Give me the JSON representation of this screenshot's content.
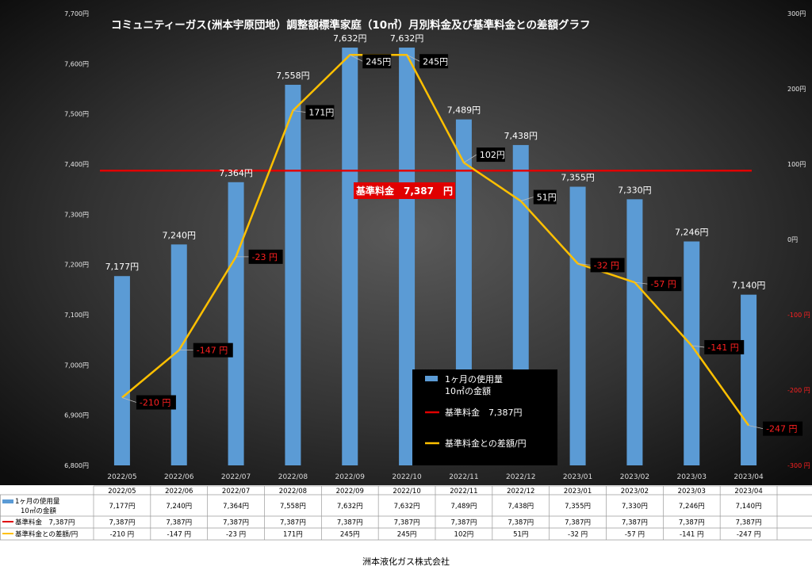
{
  "chart_data": {
    "type": "bar+line",
    "title": "コミュニティーガス(洲本宇原団地）調整額標準家庭（10㎥）月別料金及び基準料金との差額グラフ",
    "categories": [
      "2022/05",
      "2022/06",
      "2022/07",
      "2022/08",
      "2022/09",
      "2022/10",
      "2022/11",
      "2022/12",
      "2023/01",
      "2023/02",
      "2023/03",
      "2023/04"
    ],
    "series": [
      {
        "name": "1ヶ月の使用量\n10㎥の金額",
        "table_name_lines": [
          "1ヶ月の使用量",
          "10㎥の金額"
        ],
        "type": "bar",
        "axis": "left",
        "values": [
          7177,
          7240,
          7364,
          7558,
          7632,
          7632,
          7489,
          7438,
          7355,
          7330,
          7246,
          7140
        ],
        "labels": [
          "7,177円",
          "7,240円",
          "7,364円",
          "7,558円",
          "7,632円",
          "7,632円",
          "7,489円",
          "7,438円",
          "7,355円",
          "7,330円",
          "7,246円",
          "7,140円"
        ],
        "table": [
          "7,177円",
          "7,240円",
          "7,364円",
          "7,558円",
          "7,632円",
          "7,632円",
          "7,489円",
          "7,438円",
          "7,355円",
          "7,330円",
          "7,246円",
          "7,140円"
        ],
        "color": "#5b9bd5"
      },
      {
        "name": "基準料金　7,387円",
        "legend_name": "基準料金　7,387円",
        "type": "line",
        "axis": "left",
        "values": [
          7387,
          7387,
          7387,
          7387,
          7387,
          7387,
          7387,
          7387,
          7387,
          7387,
          7387,
          7387
        ],
        "table": [
          "7,387円",
          "7,387円",
          "7,387円",
          "7,387円",
          "7,387円",
          "7,387円",
          "7,387円",
          "7,387円",
          "7,387円",
          "7,387円",
          "7,387円",
          "7,387円"
        ],
        "color": "#e00000"
      },
      {
        "name": "基準料金との差額/円",
        "type": "line",
        "axis": "right",
        "values": [
          -210,
          -147,
          -23,
          171,
          245,
          245,
          102,
          51,
          -32,
          -57,
          -141,
          -247
        ],
        "labels": [
          "-210 円",
          "-147 円",
          "-23 円",
          "171円",
          "245円",
          "245円",
          "102円",
          "51円",
          "-32 円",
          "-57 円",
          "-141 円",
          "-247 円"
        ],
        "table": [
          "-210 円",
          "-147 円",
          "-23 円",
          "171円",
          "245円",
          "245円",
          "102円",
          "51円",
          "-32 円",
          "-57 円",
          "-141 円",
          "-247 円"
        ],
        "color": "#ffc000"
      }
    ],
    "y_left": {
      "min": 6800,
      "max": 7700,
      "step": 100,
      "ticks": [
        "6,800円",
        "6,900円",
        "7,000円",
        "7,100円",
        "7,200円",
        "7,300円",
        "7,400円",
        "7,500円",
        "7,600円",
        "7,700円"
      ]
    },
    "y_right": {
      "min": -300,
      "max": 300,
      "step": 100,
      "ticks": [
        "-300 円",
        "-200 円",
        "-100 円",
        "0円",
        "100円",
        "200円",
        "300円"
      ]
    },
    "annotation": "基準料金　7,387　円",
    "legend_position": "inside-bottom-center",
    "grid": false,
    "table_columns": [
      "2022/05",
      "2022/06",
      "2022/07",
      "2022/08",
      "2022/09",
      "2022/10",
      "2022/11",
      "2022/12",
      "2023/01",
      "2023/02",
      "2023/03",
      "2023/04"
    ]
  },
  "footer": "洲本液化ガス株式会社",
  "colors": {
    "background_center": "#555555",
    "background_edge": "#111111",
    "bar": "#5b9bd5",
    "base_line": "#e00000",
    "diff_line": "#ffc000",
    "negative_text": "#ff2020",
    "annotation_bg": "#e00000"
  }
}
